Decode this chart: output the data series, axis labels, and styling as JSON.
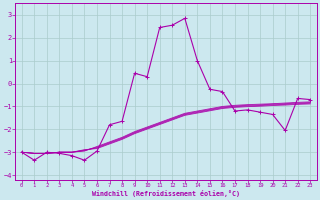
{
  "xlabel": "Windchill (Refroidissement éolien,°C)",
  "xlim": [
    -0.5,
    23.5
  ],
  "ylim": [
    -4.2,
    3.5
  ],
  "yticks": [
    -4,
    -3,
    -2,
    -1,
    0,
    1,
    2,
    3
  ],
  "xticks": [
    0,
    1,
    2,
    3,
    4,
    5,
    6,
    7,
    8,
    9,
    10,
    11,
    12,
    13,
    14,
    15,
    16,
    17,
    18,
    19,
    20,
    21,
    22,
    23
  ],
  "bg_color": "#cce8ef",
  "grid_color": "#aacccc",
  "line_color": "#aa00aa",
  "main_line_x": [
    0,
    1,
    2,
    3,
    4,
    5,
    6,
    7,
    8,
    9,
    10,
    11,
    12,
    13,
    14,
    15,
    16,
    17,
    18,
    19,
    20,
    21,
    22,
    23
  ],
  "main_line_y": [
    -3.0,
    -3.35,
    -3.0,
    -3.05,
    -3.15,
    -3.35,
    -2.95,
    -1.8,
    -1.65,
    0.45,
    0.3,
    2.45,
    2.55,
    2.85,
    1.0,
    -0.25,
    -0.35,
    -1.2,
    -1.15,
    -1.25,
    -1.35,
    -2.05,
    -0.65,
    -0.7
  ],
  "band_x": [
    0,
    1,
    2,
    3,
    4,
    5,
    6,
    7,
    8,
    9,
    10,
    11,
    12,
    13,
    14,
    15,
    16,
    17,
    18,
    19,
    20,
    21,
    22,
    23
  ],
  "band_lines": [
    [
      -3.0,
      -3.05,
      -3.05,
      -3.0,
      -3.0,
      -2.95,
      -2.75,
      -2.55,
      -2.35,
      -2.1,
      -1.9,
      -1.7,
      -1.5,
      -1.3,
      -1.2,
      -1.1,
      -1.0,
      -0.95,
      -0.92,
      -0.9,
      -0.88,
      -0.85,
      -0.82,
      -0.8
    ],
    [
      -3.0,
      -3.05,
      -3.05,
      -3.0,
      -3.0,
      -2.93,
      -2.78,
      -2.58,
      -2.38,
      -2.13,
      -1.93,
      -1.73,
      -1.53,
      -1.33,
      -1.23,
      -1.13,
      -1.03,
      -0.98,
      -0.95,
      -0.93,
      -0.9,
      -0.88,
      -0.85,
      -0.83
    ],
    [
      -3.0,
      -3.05,
      -3.05,
      -3.0,
      -3.0,
      -2.91,
      -2.81,
      -2.61,
      -2.41,
      -2.16,
      -1.96,
      -1.76,
      -1.56,
      -1.36,
      -1.26,
      -1.16,
      -1.06,
      -1.01,
      -0.98,
      -0.96,
      -0.93,
      -0.91,
      -0.88,
      -0.86
    ],
    [
      -3.0,
      -3.05,
      -3.05,
      -3.0,
      -3.0,
      -2.89,
      -2.84,
      -2.64,
      -2.44,
      -2.19,
      -1.99,
      -1.79,
      -1.59,
      -1.39,
      -1.29,
      -1.19,
      -1.09,
      -1.04,
      -1.01,
      -0.99,
      -0.96,
      -0.94,
      -0.91,
      -0.89
    ]
  ]
}
